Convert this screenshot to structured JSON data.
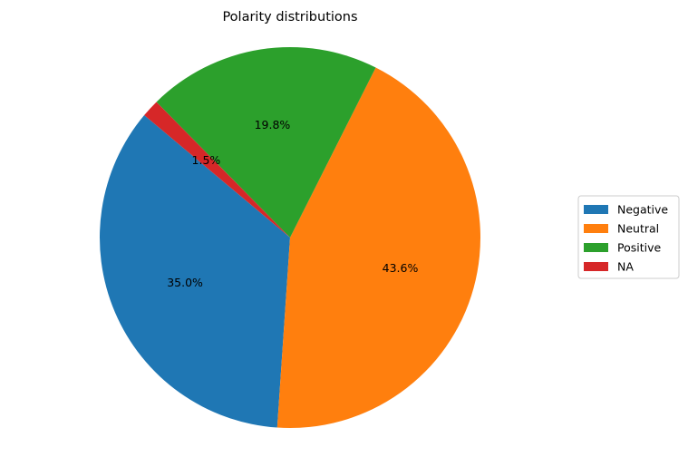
{
  "chart_data": {
    "type": "pie",
    "title": "Polarity distributions",
    "categories": [
      "Negative",
      "Neutral",
      "Positive",
      "NA"
    ],
    "values": [
      35.0,
      43.6,
      19.8,
      1.5
    ],
    "labels": [
      "35.0%",
      "43.6%",
      "19.8%",
      "1.5%"
    ],
    "colors": [
      "#1f77b4",
      "#ff7f0e",
      "#2ca02c",
      "#d62728"
    ],
    "start_angle_deg": 140,
    "direction": "counterclockwise",
    "legend_position": "right"
  }
}
